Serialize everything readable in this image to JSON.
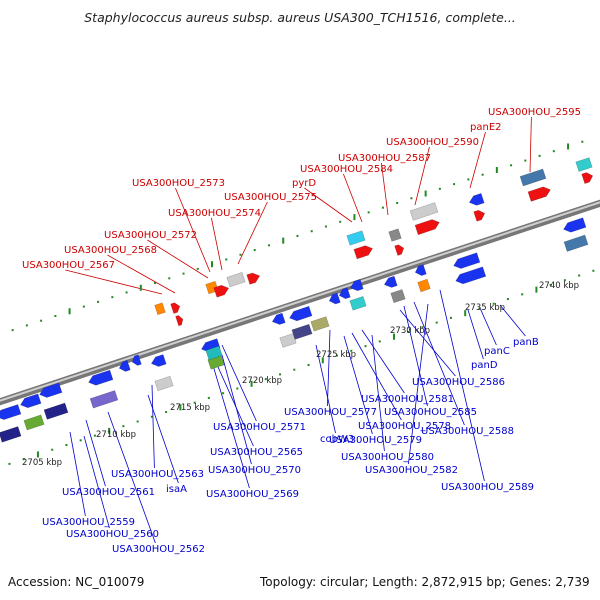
{
  "title": "Staphylococcus aureus subsp. aureus USA300_TCH1516, complete...",
  "footer": {
    "accession": "Accession: NC_010079",
    "info": "Topology: circular; Length: 2,872,915 bp; Genes: 2,739"
  },
  "colors": {
    "forward_label": "#cc0000",
    "reverse_label": "#0000cc",
    "forward_gene": "#ee1111",
    "reverse_gene": "#1a33ee",
    "backbone": "#999999",
    "tick": "#228822"
  },
  "kbp_ticks": [
    "2705 kbp",
    "2710 kbp",
    "2715 kbp",
    "2720 kbp",
    "2725 kbp",
    "2730 kbp",
    "2735 kbp",
    "2740 kbp"
  ],
  "forward_labels": [
    "USA300HOU_2595",
    "panE2",
    "USA300HOU_2590",
    "USA300HOU_2587",
    "USA300HOU_2584",
    "pyrD",
    "USA300HOU_2573",
    "USA300HOU_2575",
    "USA300HOU_2574",
    "USA300HOU_2572",
    "USA300HOU_2568",
    "USA300HOU_2567"
  ],
  "reverse_labels": [
    "panB",
    "panC",
    "panD",
    "USA300HOU_2586",
    "USA300HOU_2581",
    "USA300HOU_2577",
    "USA300HOU_2585",
    "USA300HOU_2571",
    "USA300HOU_2578",
    "cobW3",
    "USA300HOU_2588",
    "USA300HOU_2579",
    "USA300HOU_2565",
    "USA300HOU_2580",
    "USA300HOU_2570",
    "USA300HOU_2582",
    "USA300HOU_2563",
    "isaA",
    "USA300HOU_2569",
    "USA300HOU_2589",
    "USA300HOU_2561",
    "USA300HOU_2559",
    "USA300HOU_2560",
    "USA300HOU_2562"
  ]
}
